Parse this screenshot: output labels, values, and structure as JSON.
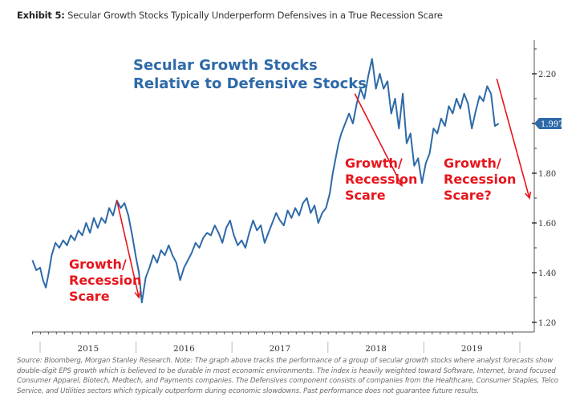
{
  "header": {
    "exhibit_label": "Exhibit 5:",
    "title": "Secular Growth Stocks Typically Underperform Defensives in a True Recession Scare"
  },
  "chart_data": {
    "type": "line",
    "title": "Secular Growth Stocks Relative to Defensive Stocks",
    "title_lines": [
      "Secular Growth Stocks",
      "Relative to Defensive Stocks"
    ],
    "xlabel": "",
    "ylabel": "",
    "x_ticks": [
      "2015",
      "2016",
      "2017",
      "2018",
      "2019"
    ],
    "y_ticks": [
      "2.20",
      "1.80",
      "1.60",
      "1.40",
      "1.20"
    ],
    "ylim": [
      1.17,
      2.3
    ],
    "xlim": [
      2014.92,
      2019.95
    ],
    "y_axis_side": "right",
    "grid": false,
    "last_value_label": "1.9974",
    "last_value_color": "#2e6aa8",
    "series": [
      {
        "name": "Secular Growth vs Defensives",
        "color": "#2e6aa8",
        "x": [
          2014.92,
          2014.96,
          2015.0,
          2015.03,
          2015.06,
          2015.09,
          2015.12,
          2015.16,
          2015.2,
          2015.24,
          2015.28,
          2015.32,
          2015.36,
          2015.4,
          2015.44,
          2015.48,
          2015.52,
          2015.56,
          2015.6,
          2015.64,
          2015.68,
          2015.72,
          2015.76,
          2015.8,
          2015.84,
          2015.88,
          2015.92,
          2015.96,
          2016.0,
          2016.03,
          2016.06,
          2016.1,
          2016.14,
          2016.18,
          2016.22,
          2016.26,
          2016.3,
          2016.34,
          2016.38,
          2016.42,
          2016.46,
          2016.5,
          2016.54,
          2016.58,
          2016.62,
          2016.66,
          2016.7,
          2016.74,
          2016.78,
          2016.82,
          2016.86,
          2016.9,
          2016.94,
          2016.98,
          2017.02,
          2017.06,
          2017.1,
          2017.14,
          2017.18,
          2017.22,
          2017.26,
          2017.3,
          2017.34,
          2017.38,
          2017.42,
          2017.46,
          2017.5,
          2017.54,
          2017.58,
          2017.62,
          2017.66,
          2017.7,
          2017.74,
          2017.78,
          2017.82,
          2017.86,
          2017.9,
          2017.94,
          2017.98,
          2018.02,
          2018.05,
          2018.08,
          2018.11,
          2018.14,
          2018.18,
          2018.22,
          2018.26,
          2018.3,
          2018.34,
          2018.38,
          2018.42,
          2018.46,
          2018.5,
          2018.54,
          2018.58,
          2018.62,
          2018.66,
          2018.7,
          2018.74,
          2018.78,
          2018.82,
          2018.86,
          2018.9,
          2018.94,
          2018.98,
          2019.02,
          2019.06,
          2019.1,
          2019.14,
          2019.18,
          2019.22,
          2019.26,
          2019.3,
          2019.34,
          2019.38,
          2019.42,
          2019.46,
          2019.5,
          2019.54,
          2019.58,
          2019.62,
          2019.66,
          2019.7,
          2019.74,
          2019.78
        ],
        "y": [
          1.45,
          1.41,
          1.42,
          1.37,
          1.34,
          1.4,
          1.47,
          1.52,
          1.5,
          1.53,
          1.51,
          1.55,
          1.53,
          1.57,
          1.55,
          1.6,
          1.56,
          1.62,
          1.58,
          1.62,
          1.6,
          1.66,
          1.63,
          1.69,
          1.66,
          1.68,
          1.63,
          1.55,
          1.46,
          1.4,
          1.28,
          1.38,
          1.42,
          1.47,
          1.44,
          1.49,
          1.47,
          1.51,
          1.47,
          1.44,
          1.37,
          1.42,
          1.45,
          1.48,
          1.52,
          1.5,
          1.54,
          1.56,
          1.55,
          1.59,
          1.56,
          1.52,
          1.58,
          1.61,
          1.55,
          1.51,
          1.53,
          1.5,
          1.56,
          1.61,
          1.57,
          1.59,
          1.52,
          1.56,
          1.6,
          1.64,
          1.61,
          1.59,
          1.65,
          1.62,
          1.66,
          1.63,
          1.68,
          1.7,
          1.64,
          1.67,
          1.6,
          1.64,
          1.66,
          1.72,
          1.8,
          1.86,
          1.92,
          1.96,
          2.0,
          2.04,
          2.0,
          2.08,
          2.14,
          2.1,
          2.19,
          2.26,
          2.14,
          2.2,
          2.14,
          2.17,
          2.04,
          2.1,
          1.98,
          2.12,
          1.92,
          1.96,
          1.83,
          1.86,
          1.76,
          1.84,
          1.88,
          1.98,
          1.96,
          2.02,
          1.99,
          2.07,
          2.04,
          2.1,
          2.06,
          2.12,
          2.08,
          1.98,
          2.05,
          2.11,
          2.09,
          2.15,
          2.12,
          1.99,
          2.0
        ]
      }
    ],
    "annotations": [
      {
        "text_lines": [
          "Growth/",
          "Recession",
          "Scare"
        ],
        "color": "#e8141c",
        "arrow_from_x": 2015.8,
        "arrow_from_y": 1.69,
        "arrow_to_x": 2016.03,
        "arrow_to_y": 1.3
      },
      {
        "text_lines": [
          "Growth/",
          "Recession",
          "Scare"
        ],
        "color": "#e8141c",
        "arrow_from_x": 2018.28,
        "arrow_from_y": 2.12,
        "arrow_to_x": 2018.77,
        "arrow_to_y": 1.75
      },
      {
        "text_lines": [
          "Growth/",
          "Recession",
          "Scare?"
        ],
        "color": "#e8141c",
        "arrow_from_x": 2019.76,
        "arrow_from_y": 2.18,
        "arrow_to_x": 2020.1,
        "arrow_to_y": 1.7
      }
    ]
  },
  "footnote": "Source: Bloomberg, Morgan Stanley Research. Note: The graph above tracks the performance of a group of secular growth stocks where analyst forecasts show double-digit EPS growth which is believed to be durable in most economic environments. The index is heavily weighted toward Software, Internet, brand focused Consumer Apparel, Biotech, Medtech, and Payments companies. The Defensives component consists of companies from the Healthcare, Consumer Staples, Telco Service, and Utilities sectors which typically outperform during economic slowdowns. Past performance does not guarantee future results."
}
